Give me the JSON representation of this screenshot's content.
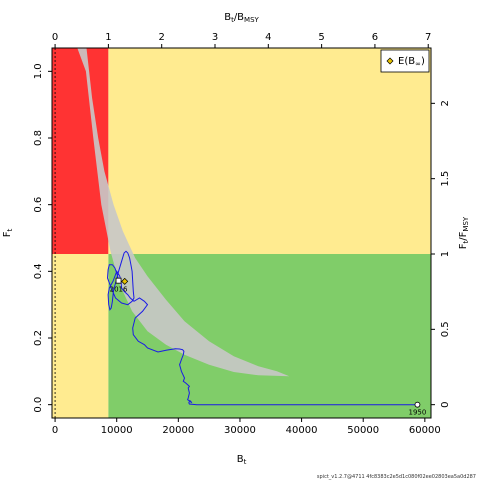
{
  "chart_data": {
    "type": "line",
    "xlabel": "B",
    "xlabel_sub": "t",
    "ylabel": "F",
    "ylabel_sub": "t",
    "top_label": "B",
    "top_label_sub": "t",
    "top_label_suffix": "/B",
    "top_label_suffix_sub": "MSY",
    "right_label": "F",
    "right_label_sub": "t",
    "right_label_suffix": "/F",
    "right_label_suffix_sub": "MSY",
    "xlim": [
      -500,
      61000
    ],
    "ylim": [
      -0.04,
      1.07
    ],
    "x_ticks": [
      0,
      10000,
      20000,
      30000,
      40000,
      50000,
      60000
    ],
    "y_ticks": [
      0.0,
      0.2,
      0.4,
      0.6,
      0.8,
      1.0
    ],
    "y_tick_labels": [
      "0.0",
      "0.2",
      "0.4",
      "0.6",
      "0.8",
      "1.0"
    ],
    "top_ticks": [
      0,
      1,
      2,
      3,
      4,
      5,
      6,
      7
    ],
    "right_ticks": [
      0,
      0.5,
      1,
      1.5,
      2
    ],
    "bmsy": 8650,
    "fmsy": 0.452,
    "zones": {
      "red": "#FF3333",
      "yellow": "#FFEB90",
      "green": "#80CD69",
      "uncertainty": "#C8C8C8"
    },
    "ellipse_upper": [
      [
        5100,
        1.07
      ],
      [
        6000,
        0.92
      ],
      [
        7000,
        0.8
      ],
      [
        8000,
        0.7
      ],
      [
        9500,
        0.6
      ],
      [
        11000,
        0.52
      ],
      [
        13000,
        0.44
      ],
      [
        15000,
        0.385
      ],
      [
        18000,
        0.315
      ],
      [
        21000,
        0.25
      ],
      [
        25000,
        0.19
      ],
      [
        29000,
        0.145
      ],
      [
        33000,
        0.115
      ],
      [
        36000,
        0.1
      ],
      [
        38000,
        0.085
      ]
    ],
    "ellipse_lower": [
      [
        33000,
        0.088
      ],
      [
        29000,
        0.098
      ],
      [
        25000,
        0.12
      ],
      [
        21000,
        0.15
      ],
      [
        18000,
        0.18
      ],
      [
        15000,
        0.22
      ],
      [
        12500,
        0.28
      ],
      [
        10500,
        0.36
      ],
      [
        9000,
        0.46
      ],
      [
        7500,
        0.6
      ],
      [
        6200,
        0.8
      ],
      [
        5000,
        1.0
      ],
      [
        3600,
        1.07
      ]
    ],
    "series": [
      {
        "x": [
          58800,
          50000,
          40000,
          30000,
          23000,
          21800,
          21700,
          21900,
          22200,
          21500,
          21600,
          21800,
          21600,
          21800,
          21200,
          20800,
          21000,
          20500,
          20200,
          20600,
          20800,
          20900,
          20700,
          20200,
          19500,
          18000,
          16700,
          15000,
          14500,
          13500,
          12700,
          12600,
          13000,
          14200,
          15000,
          14500,
          13700,
          12800,
          12200,
          11800,
          11200,
          10800,
          10700,
          10500,
          10200,
          10000,
          9800,
          9400,
          8800,
          8600,
          8700,
          8900,
          9100,
          9300,
          9500,
          9900,
          10300,
          10800,
          11200,
          11500,
          11800,
          12100,
          12300,
          12500,
          12600,
          12700,
          12800,
          12500,
          11800,
          10800,
          9800,
          9100,
          8500,
          8600,
          8800,
          9300,
          9700,
          10100,
          10300
        ],
        "y": [
          0.0,
          0.0,
          0.0,
          0.0,
          0.0,
          0.002,
          0.006,
          0.012,
          0.006,
          0.015,
          0.02,
          0.035,
          0.05,
          0.055,
          0.065,
          0.07,
          0.08,
          0.1,
          0.12,
          0.14,
          0.15,
          0.16,
          0.165,
          0.167,
          0.168,
          0.163,
          0.158,
          0.17,
          0.18,
          0.19,
          0.21,
          0.23,
          0.26,
          0.28,
          0.3,
          0.31,
          0.32,
          0.31,
          0.32,
          0.33,
          0.34,
          0.35,
          0.37,
          0.385,
          0.395,
          0.4,
          0.39,
          0.37,
          0.35,
          0.33,
          0.3,
          0.285,
          0.29,
          0.31,
          0.345,
          0.37,
          0.4,
          0.43,
          0.455,
          0.46,
          0.455,
          0.44,
          0.42,
          0.4,
          0.37,
          0.34,
          0.32,
          0.31,
          0.3,
          0.305,
          0.32,
          0.35,
          0.38,
          0.405,
          0.42,
          0.42,
          0.41,
          0.39,
          0.372
        ]
      }
    ],
    "start_point": {
      "x": 58800,
      "y": 0.0,
      "label": "1950"
    },
    "end_point": {
      "x": 10300,
      "y": 0.372,
      "label": "2016"
    },
    "prediction_point": {
      "x": 11300,
      "y": 0.37
    },
    "legend": {
      "label": "E(B",
      "label_sub": "∞",
      "label_tail": ")",
      "position": "top-right"
    },
    "line_color": "#1A1AE6",
    "footer": "spict_v1.2.7@4711 4fc8383c2e5d1c080f02ee02803ea5a0d287"
  }
}
